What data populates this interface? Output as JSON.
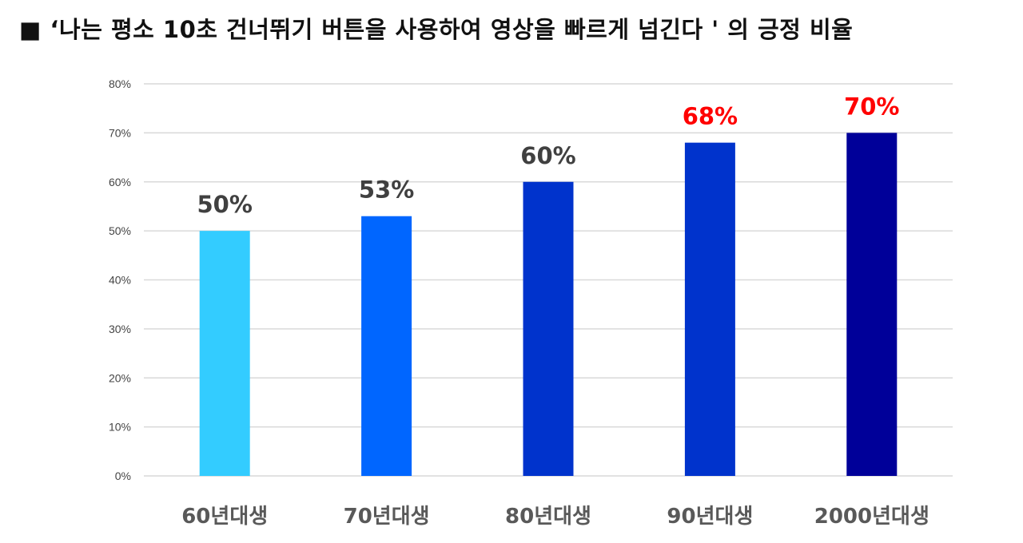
{
  "title": "■ ‘나는 평소 10초 건너뛰기 버튼을 사용하여 영상을 빠르게 넘긴다 ' 의 긍정 비율",
  "chart_data": {
    "type": "bar",
    "categories": [
      "60년대생",
      "70년대생",
      "80년대생",
      "90년대생",
      "2000년대생"
    ],
    "values": [
      50,
      53,
      60,
      68,
      70
    ],
    "data_labels": [
      "50%",
      "53%",
      "60%",
      "68%",
      "70%"
    ],
    "bar_colors": [
      "#33ccff",
      "#0066ff",
      "#0033cc",
      "#0033cc",
      "#000099"
    ],
    "label_colors": [
      "#404040",
      "#404040",
      "#404040",
      "#ff0000",
      "#ff0000"
    ],
    "ylim": [
      0,
      80
    ],
    "yticks": [
      0,
      10,
      20,
      30,
      40,
      50,
      60,
      70,
      80
    ],
    "ytick_labels": [
      "0%",
      "10%",
      "20%",
      "30%",
      "40%",
      "50%",
      "60%",
      "70%",
      "80%"
    ],
    "grid": true,
    "gridline_color": "#d9d9d9",
    "legend": "none"
  }
}
